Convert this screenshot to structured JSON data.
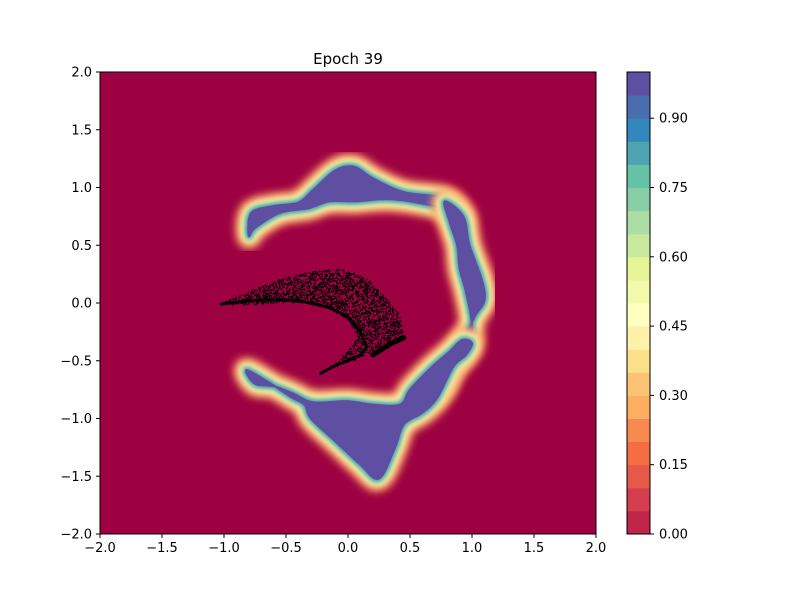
{
  "chart_data": {
    "type": "heatmap",
    "title": "Epoch 39",
    "xlabel": "",
    "ylabel": "",
    "xlim": [
      -2.0,
      2.0
    ],
    "ylim": [
      -2.0,
      2.0
    ],
    "x_ticks": [
      -2.0,
      -1.5,
      -1.0,
      -0.5,
      0.0,
      0.5,
      1.0,
      1.5,
      2.0
    ],
    "x_tick_labels": [
      "−2.0",
      "−1.5",
      "−1.0",
      "−0.5",
      "0.0",
      "0.5",
      "1.0",
      "1.5",
      "2.0"
    ],
    "y_ticks": [
      -2.0,
      -1.5,
      -1.0,
      -0.5,
      0.0,
      0.5,
      1.0,
      1.5,
      2.0
    ],
    "y_tick_labels": [
      "−2.0",
      "−1.5",
      "−1.0",
      "−0.5",
      "0.0",
      "0.5",
      "1.0",
      "1.5",
      "2.0"
    ],
    "grid": false,
    "colormap": "Spectral",
    "colorbar": {
      "range": [
        0.0,
        1.0
      ],
      "levels": 20,
      "ticks": [
        0.0,
        0.15,
        0.3,
        0.45,
        0.6,
        0.75,
        0.9
      ],
      "tick_labels": [
        "0.00",
        "0.15",
        "0.30",
        "0.45",
        "0.60",
        "0.75",
        "0.90"
      ],
      "colors": [
        "#9e0142",
        "#c0254a",
        "#d53e4f",
        "#e65848",
        "#f46d43",
        "#f88950",
        "#fdae61",
        "#fdc374",
        "#fee08b",
        "#fff1a7",
        "#ffffbf",
        "#f2faab",
        "#e6f598",
        "#c8e99e",
        "#abdda4",
        "#89cfa5",
        "#66c2a5",
        "#4fa3b3",
        "#3288bd",
        "#4a6db0",
        "#5e4fa2"
      ]
    },
    "background_value": 0.0,
    "regions": [
      {
        "name": "upper-band",
        "value": 1.0,
        "outline": [
          [
            -0.8,
            0.58
          ],
          [
            -0.78,
            0.78
          ],
          [
            -0.6,
            0.84
          ],
          [
            -0.4,
            0.87
          ],
          [
            -0.28,
            0.98
          ],
          [
            -0.1,
            1.15
          ],
          [
            0.05,
            1.18
          ],
          [
            0.2,
            1.08
          ],
          [
            0.45,
            0.96
          ],
          [
            0.8,
            0.9
          ],
          [
            0.92,
            0.72
          ],
          [
            0.75,
            0.82
          ],
          [
            0.5,
            0.88
          ],
          [
            0.3,
            0.9
          ],
          [
            0.05,
            0.88
          ],
          [
            -0.15,
            0.88
          ],
          [
            -0.32,
            0.82
          ],
          [
            -0.55,
            0.78
          ],
          [
            -0.75,
            0.65
          ]
        ]
      },
      {
        "name": "right-band",
        "value": 1.0,
        "outline": [
          [
            0.78,
            0.88
          ],
          [
            0.93,
            0.75
          ],
          [
            0.98,
            0.5
          ],
          [
            1.08,
            0.2
          ],
          [
            1.1,
            0.02
          ],
          [
            1.02,
            -0.12
          ],
          [
            0.92,
            -0.35
          ],
          [
            0.85,
            -0.55
          ],
          [
            0.78,
            -0.72
          ],
          [
            0.7,
            -0.8
          ],
          [
            0.82,
            -0.62
          ],
          [
            0.95,
            -0.4
          ],
          [
            1.0,
            -0.2
          ],
          [
            0.95,
            0.1
          ],
          [
            0.9,
            0.3
          ],
          [
            0.88,
            0.5
          ],
          [
            0.82,
            0.7
          ]
        ]
      },
      {
        "name": "lower-band",
        "value": 1.0,
        "outline": [
          [
            -0.82,
            -0.58
          ],
          [
            -0.65,
            -0.68
          ],
          [
            -0.45,
            -0.82
          ],
          [
            -0.35,
            -0.88
          ],
          [
            -0.3,
            -1.0
          ],
          [
            -0.1,
            -1.2
          ],
          [
            0.1,
            -1.4
          ],
          [
            0.25,
            -1.52
          ],
          [
            0.38,
            -1.25
          ],
          [
            0.45,
            -1.05
          ],
          [
            0.6,
            -0.95
          ],
          [
            0.72,
            -0.82
          ],
          [
            0.85,
            -0.55
          ],
          [
            0.95,
            -0.45
          ],
          [
            1.0,
            -0.35
          ],
          [
            0.92,
            -0.32
          ],
          [
            0.82,
            -0.42
          ],
          [
            0.68,
            -0.55
          ],
          [
            0.5,
            -0.75
          ],
          [
            0.42,
            -0.88
          ],
          [
            0.2,
            -0.88
          ],
          [
            0.0,
            -0.85
          ],
          [
            -0.28,
            -0.86
          ],
          [
            -0.45,
            -0.78
          ],
          [
            -0.6,
            -0.72
          ],
          [
            -0.75,
            -0.7
          ]
        ]
      }
    ],
    "scatter": {
      "color": "#000000",
      "count": 4000,
      "cluster_outline": [
        [
          -1.02,
          0.0
        ],
        [
          -0.9,
          0.05
        ],
        [
          -0.7,
          0.15
        ],
        [
          -0.5,
          0.22
        ],
        [
          -0.3,
          0.27
        ],
        [
          -0.05,
          0.3
        ],
        [
          0.15,
          0.22
        ],
        [
          0.3,
          0.05
        ],
        [
          0.42,
          -0.1
        ],
        [
          0.45,
          -0.3
        ],
        [
          0.35,
          -0.32
        ],
        [
          0.2,
          -0.42
        ],
        [
          0.05,
          -0.5
        ],
        [
          -0.1,
          -0.55
        ],
        [
          -0.2,
          -0.6
        ],
        [
          -0.1,
          -0.52
        ],
        [
          0.0,
          -0.42
        ],
        [
          0.08,
          -0.3
        ],
        [
          0.0,
          -0.15
        ],
        [
          -0.15,
          -0.05
        ],
        [
          -0.35,
          0.0
        ],
        [
          -0.55,
          0.0
        ],
        [
          -0.75,
          -0.02
        ],
        [
          -0.95,
          -0.02
        ]
      ]
    }
  }
}
